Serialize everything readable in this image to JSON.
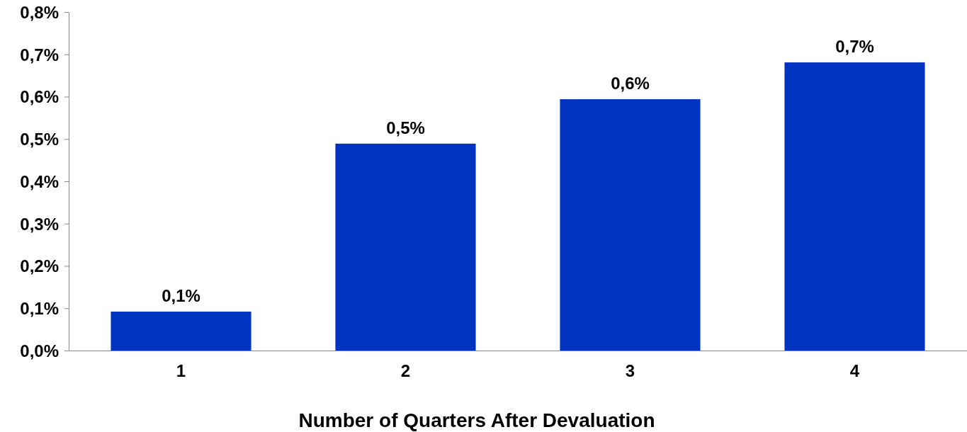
{
  "chart_data": {
    "type": "bar",
    "xlabel": "Number of Quarters After Devaluation",
    "categories": [
      "1",
      "2",
      "3",
      "4"
    ],
    "values": [
      0.092,
      0.489,
      0.594,
      0.681
    ],
    "value_labels": [
      "0,1%",
      "0,5%",
      "0,6%",
      "0,7%"
    ],
    "color": "#0033c0",
    "ylim": [
      0,
      0.8
    ],
    "yticks": [
      {
        "value": 0,
        "label": "0,0%"
      },
      {
        "value": 0.1,
        "label": "0,1%"
      },
      {
        "value": 0.2,
        "label": "0,2%"
      },
      {
        "value": 0.3,
        "label": "0,3%"
      },
      {
        "value": 0.4,
        "label": "0,4%"
      },
      {
        "value": 0.5,
        "label": "0,5%"
      },
      {
        "value": 0.6,
        "label": "0,6%"
      },
      {
        "value": 0.7,
        "label": "0,7%"
      },
      {
        "value": 0.8,
        "label": "0,8%"
      }
    ],
    "grid": false
  }
}
